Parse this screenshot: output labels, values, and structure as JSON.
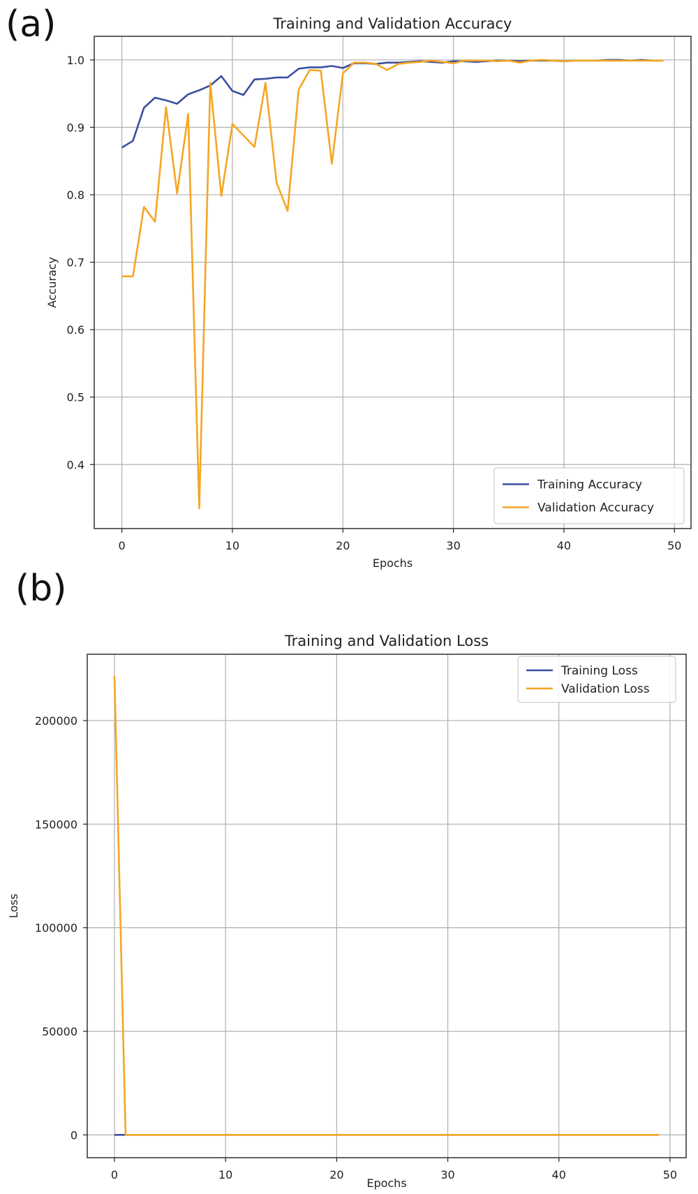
{
  "panels": {
    "a": "(a)",
    "b": "(b)"
  },
  "chart_data": [
    {
      "type": "line",
      "title": "Training and Validation Accuracy",
      "xlabel": "Epochs",
      "ylabel": "Accuracy",
      "xlim": [
        -2.5,
        51.5
      ],
      "ylim": [
        0.305,
        1.035
      ],
      "xticks": [
        0,
        10,
        20,
        30,
        40,
        50
      ],
      "yticks": [
        0.4,
        0.5,
        0.6,
        0.7,
        0.8,
        0.9,
        1.0
      ],
      "xtick_labels": [
        "0",
        "10",
        "20",
        "30",
        "40",
        "50"
      ],
      "ytick_labels": [
        "0.4",
        "0.5",
        "0.6",
        "0.7",
        "0.8",
        "0.9",
        "1.0"
      ],
      "grid": true,
      "legend_position": "lower-right",
      "x": [
        0,
        1,
        2,
        3,
        4,
        5,
        6,
        7,
        8,
        9,
        10,
        11,
        12,
        13,
        14,
        15,
        16,
        17,
        18,
        19,
        20,
        21,
        22,
        23,
        24,
        25,
        26,
        27,
        28,
        29,
        30,
        31,
        32,
        33,
        34,
        35,
        36,
        37,
        38,
        39,
        40,
        41,
        42,
        43,
        44,
        45,
        46,
        47,
        48,
        49
      ],
      "series": [
        {
          "name": "Training Accuracy",
          "color": "#3c4fa0",
          "values": [
            0.87,
            0.88,
            0.929,
            0.944,
            0.94,
            0.935,
            0.949,
            0.955,
            0.962,
            0.976,
            0.954,
            0.948,
            0.971,
            0.972,
            0.974,
            0.974,
            0.987,
            0.989,
            0.989,
            0.991,
            0.988,
            0.995,
            0.995,
            0.994,
            0.996,
            0.996,
            0.997,
            0.998,
            0.997,
            0.996,
            0.998,
            0.998,
            0.997,
            0.998,
            0.999,
            0.999,
            0.998,
            0.999,
            0.999,
            0.999,
            0.998,
            0.999,
            0.999,
            0.999,
            1.0,
            1.0,
            0.999,
            1.0,
            0.999,
            0.999
          ]
        },
        {
          "name": "Validation Accuracy",
          "color": "#f5a623",
          "values": [
            0.679,
            0.679,
            0.782,
            0.76,
            0.93,
            0.802,
            0.92,
            0.335,
            0.966,
            0.798,
            0.905,
            0.888,
            0.871,
            0.966,
            0.818,
            0.776,
            0.956,
            0.985,
            0.984,
            0.846,
            0.98,
            0.996,
            0.996,
            0.994,
            0.985,
            0.994,
            0.996,
            0.997,
            0.999,
            0.997,
            0.995,
            0.999,
            0.999,
            0.999,
            0.998,
            0.999,
            0.996,
            0.999,
            1.0,
            0.999,
            0.998,
            0.999,
            0.999,
            0.999,
            0.999,
            0.999,
            0.999,
            0.999,
            0.999,
            0.999
          ]
        }
      ]
    },
    {
      "type": "line",
      "title": "Training and Validation Loss",
      "xlabel": "Epochs",
      "ylabel": "Loss",
      "xlim": [
        -2.45,
        51.45
      ],
      "ylim": [
        -11000,
        232000
      ],
      "xticks": [
        0,
        10,
        20,
        30,
        40,
        50
      ],
      "yticks": [
        0,
        50000,
        100000,
        150000,
        200000
      ],
      "xtick_labels": [
        "0",
        "10",
        "20",
        "30",
        "40",
        "50"
      ],
      "ytick_labels": [
        "0",
        "50000",
        "100000",
        "150000",
        "200000"
      ],
      "grid": true,
      "legend_position": "upper-right",
      "x": [
        0,
        1,
        2,
        3,
        4,
        5,
        6,
        7,
        8,
        9,
        10,
        11,
        12,
        13,
        14,
        15,
        16,
        17,
        18,
        19,
        20,
        21,
        22,
        23,
        24,
        25,
        26,
        27,
        28,
        29,
        30,
        31,
        32,
        33,
        34,
        35,
        36,
        37,
        38,
        39,
        40,
        41,
        42,
        43,
        44,
        45,
        46,
        47,
        48,
        49
      ],
      "series": [
        {
          "name": "Training Loss",
          "color": "#3c4fa0",
          "values": [
            0,
            0,
            0,
            0,
            0,
            0,
            0,
            0,
            0,
            0,
            0,
            0,
            0,
            0,
            0,
            0,
            0,
            0,
            0,
            0,
            0,
            0,
            0,
            0,
            0,
            0,
            0,
            0,
            0,
            0,
            0,
            0,
            0,
            0,
            0,
            0,
            0,
            0,
            0,
            0,
            0,
            0,
            0,
            0,
            0,
            0,
            0,
            0,
            0,
            0
          ]
        },
        {
          "name": "Validation Loss",
          "color": "#f5a623",
          "values": [
            221500,
            0,
            0,
            0,
            0,
            0,
            0,
            0,
            0,
            0,
            0,
            0,
            0,
            0,
            0,
            0,
            0,
            0,
            0,
            0,
            0,
            0,
            0,
            0,
            0,
            0,
            0,
            0,
            0,
            0,
            0,
            0,
            0,
            0,
            0,
            0,
            0,
            0,
            0,
            0,
            0,
            0,
            0,
            0,
            0,
            0,
            0,
            0,
            0,
            0
          ]
        }
      ]
    }
  ]
}
